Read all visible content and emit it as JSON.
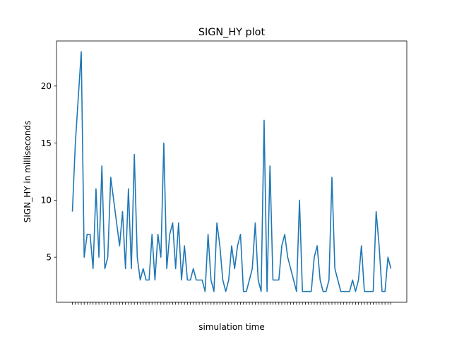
{
  "chart_data": {
    "type": "line",
    "title": "SIGN_HY plot",
    "xlabel": "simulation time",
    "ylabel": "SIGN_HY in milliseconds",
    "x_tick_labels_note": "",
    "y": [
      9,
      15,
      19,
      23,
      5,
      7,
      7,
      4,
      11,
      5,
      13,
      4,
      5,
      12,
      10,
      8,
      6,
      9,
      4,
      11,
      4,
      14,
      5,
      3,
      4,
      3,
      3,
      7,
      3,
      7,
      5,
      15,
      4,
      7,
      8,
      4,
      8,
      3,
      6,
      3,
      3,
      4,
      3,
      3,
      3,
      2,
      7,
      3,
      2,
      8,
      6,
      3,
      2,
      3,
      6,
      4,
      6,
      7,
      2,
      2,
      3,
      4,
      8,
      3,
      2,
      17,
      2,
      13,
      3,
      3,
      3,
      6,
      7,
      5,
      4,
      3,
      2,
      10,
      2,
      2,
      2,
      2,
      5,
      6,
      3,
      2,
      2,
      3,
      12,
      4,
      3,
      2,
      2,
      2,
      2,
      3,
      2,
      3,
      6,
      2,
      2,
      2,
      2,
      9,
      6,
      2,
      2,
      5,
      4
    ],
    "yticks": [
      5,
      10,
      15,
      20
    ],
    "ylim": [
      1.05,
      23.95
    ],
    "grid": false,
    "legend": "none",
    "line_color": "#1f77b4"
  }
}
